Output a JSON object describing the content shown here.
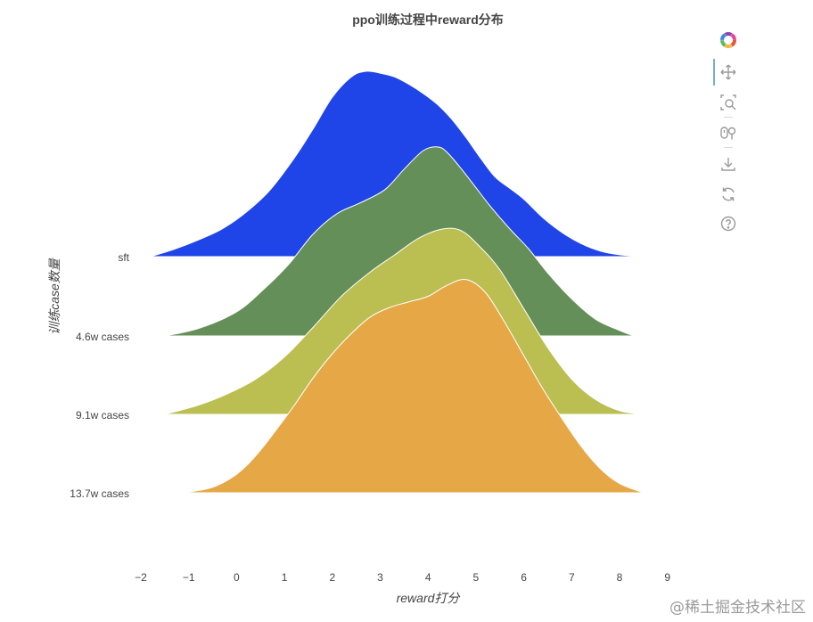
{
  "chart_data": {
    "type": "ridgeline",
    "title": "ppo训练过程中reward分布",
    "xlabel": "reward打分",
    "ylabel": "训练case数量",
    "xlim": [
      -2,
      9
    ],
    "xticks": [
      "−2",
      "−1",
      "0",
      "1",
      "2",
      "3",
      "4",
      "5",
      "6",
      "7",
      "8",
      "9"
    ],
    "grid": false,
    "series": [
      {
        "name": "sft",
        "color": "#1f45e8",
        "x": [
          -1.8,
          -1.3,
          -0.8,
          -0.3,
          0.2,
          0.7,
          1.2,
          1.6,
          2.0,
          2.4,
          2.7,
          3.0,
          3.3,
          3.6,
          3.9,
          4.2,
          4.5,
          4.8,
          5.1,
          5.4,
          5.7,
          6.0,
          6.4,
          6.8,
          7.2,
          7.6,
          8.0,
          8.5
        ],
        "density": [
          0.0,
          0.04,
          0.09,
          0.15,
          0.24,
          0.36,
          0.53,
          0.69,
          0.86,
          0.97,
          1.0,
          0.99,
          0.97,
          0.93,
          0.88,
          0.82,
          0.74,
          0.64,
          0.53,
          0.43,
          0.37,
          0.31,
          0.21,
          0.13,
          0.07,
          0.03,
          0.01,
          0.0
        ]
      },
      {
        "name": "4.6w cases",
        "color": "#658f58",
        "x": [
          -1.5,
          -0.8,
          0.0,
          0.6,
          1.1,
          1.6,
          2.1,
          2.6,
          3.1,
          3.5,
          3.9,
          4.2,
          4.4,
          4.7,
          5.0,
          5.3,
          5.7,
          6.1,
          6.5,
          7.0,
          7.5,
          8.0,
          8.3
        ],
        "density": [
          0.0,
          0.04,
          0.13,
          0.26,
          0.39,
          0.55,
          0.66,
          0.72,
          0.79,
          0.9,
          1.0,
          1.02,
          0.99,
          0.9,
          0.8,
          0.7,
          0.58,
          0.47,
          0.34,
          0.2,
          0.09,
          0.03,
          0.0
        ]
      },
      {
        "name": "9.1w cases",
        "color": "#bbbf52",
        "x": [
          -1.5,
          -0.8,
          -0.2,
          0.4,
          1.0,
          1.6,
          2.2,
          2.8,
          3.3,
          3.8,
          4.3,
          4.7,
          5.1,
          5.5,
          6.0,
          6.5,
          7.0,
          7.5,
          8.0,
          8.5
        ],
        "density": [
          0.0,
          0.05,
          0.11,
          0.19,
          0.31,
          0.47,
          0.64,
          0.77,
          0.86,
          0.95,
          1.0,
          0.99,
          0.9,
          0.78,
          0.57,
          0.36,
          0.19,
          0.08,
          0.02,
          0.0
        ]
      },
      {
        "name": "13.7w cases",
        "color": "#e6a847",
        "x": [
          -1.1,
          -0.5,
          0.0,
          0.4,
          0.8,
          1.2,
          1.6,
          2.0,
          2.4,
          2.8,
          3.2,
          3.6,
          4.0,
          4.4,
          4.8,
          5.2,
          5.6,
          6.0,
          6.4,
          6.8,
          7.2,
          7.6,
          8.0,
          8.5
        ],
        "density": [
          0.0,
          0.03,
          0.1,
          0.2,
          0.33,
          0.47,
          0.62,
          0.75,
          0.86,
          0.95,
          1.0,
          1.03,
          1.06,
          1.12,
          1.15,
          1.08,
          0.92,
          0.74,
          0.56,
          0.4,
          0.25,
          0.13,
          0.05,
          0.0
        ]
      }
    ]
  },
  "toolbar": {
    "tools": [
      "logo-icon",
      "pan-icon",
      "box-zoom-icon",
      "wheel-zoom-icon",
      "save-icon",
      "reset-icon",
      "help-icon"
    ]
  },
  "watermark": "@稀土掘金技术社区"
}
